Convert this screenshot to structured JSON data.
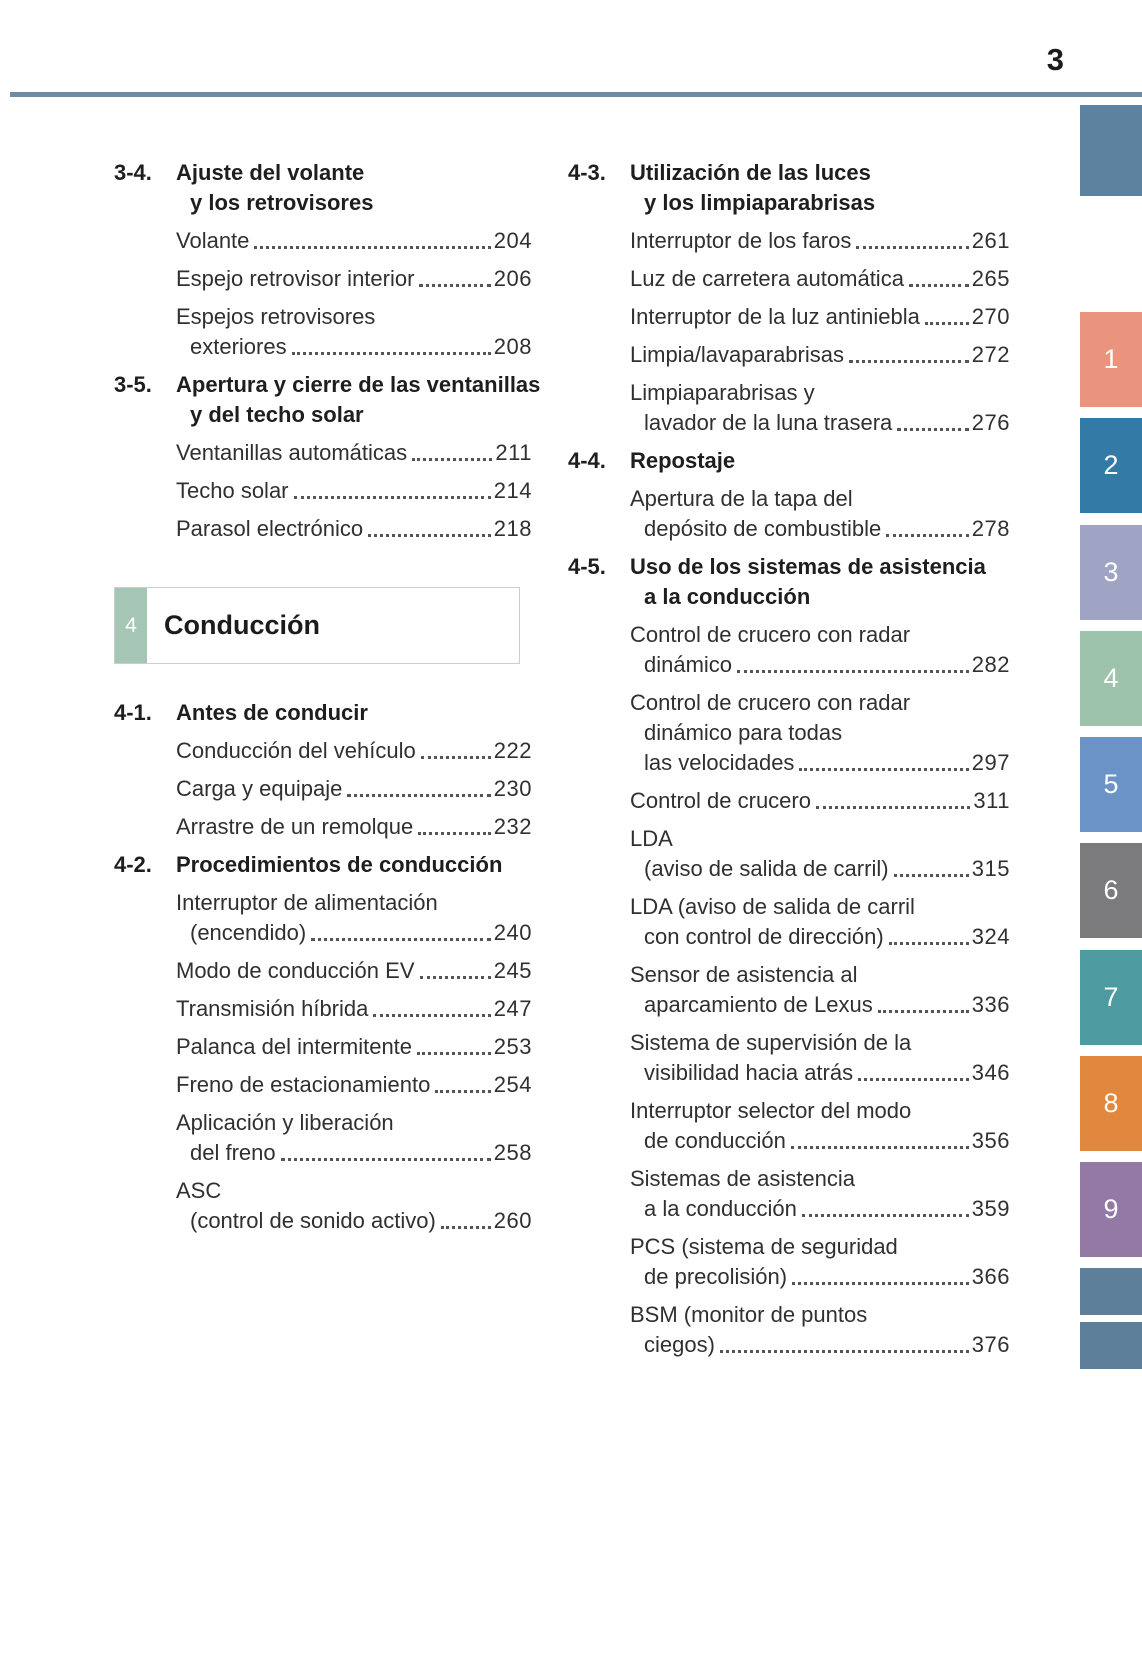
{
  "page": {
    "number": "3"
  },
  "theme": {
    "rule_color": "#6e8da4",
    "chapter_badge_color": "#a5c6b4",
    "text_color": "#303030"
  },
  "chapter_box": {
    "number": "4",
    "title": "Conducción"
  },
  "toc": {
    "left": [
      {
        "type": "section",
        "number": "3-4.",
        "title_lines": [
          "Ajuste del volante",
          "y los retrovisores"
        ],
        "items": [
          {
            "lines": [
              "Volante"
            ],
            "page": "204"
          },
          {
            "lines": [
              "Espejo retrovisor interior"
            ],
            "page": "206"
          },
          {
            "lines": [
              "Espejos retrovisores",
              "exteriores"
            ],
            "page": "208"
          }
        ]
      },
      {
        "type": "section",
        "number": "3-5.",
        "title_lines": [
          "Apertura y cierre de las ventanillas",
          "y del techo solar"
        ],
        "items": [
          {
            "lines": [
              "Ventanillas automáticas"
            ],
            "page": "211"
          },
          {
            "lines": [
              "Techo solar"
            ],
            "page": "214"
          },
          {
            "lines": [
              "Parasol electrónico"
            ],
            "page": "218"
          }
        ]
      },
      {
        "type": "chapter",
        "number": "4",
        "title": "Conducción"
      },
      {
        "type": "section",
        "number": "4-1.",
        "title_lines": [
          "Antes de conducir"
        ],
        "items": [
          {
            "lines": [
              "Conducción del vehículo"
            ],
            "page": "222"
          },
          {
            "lines": [
              "Carga y equipaje"
            ],
            "page": "230"
          },
          {
            "lines": [
              "Arrastre de un remolque"
            ],
            "page": "232"
          }
        ]
      },
      {
        "type": "section",
        "number": "4-2.",
        "title_lines": [
          "Procedimientos de conducción"
        ],
        "items": [
          {
            "lines": [
              "Interruptor de alimentación",
              "(encendido)"
            ],
            "page": "240"
          },
          {
            "lines": [
              "Modo de conducción EV"
            ],
            "page": "245"
          },
          {
            "lines": [
              "Transmisión híbrida"
            ],
            "page": "247"
          },
          {
            "lines": [
              "Palanca del intermitente"
            ],
            "page": "253"
          },
          {
            "lines": [
              "Freno de estacionamiento"
            ],
            "page": "254"
          },
          {
            "lines": [
              "Aplicación y liberación",
              "del freno"
            ],
            "page": "258"
          },
          {
            "lines": [
              "ASC",
              "(control de sonido activo)"
            ],
            "page": "260"
          }
        ]
      }
    ],
    "right": [
      {
        "type": "section",
        "number": "4-3.",
        "title_lines": [
          "Utilización de las luces",
          "y los limpiaparabrisas"
        ],
        "items": [
          {
            "lines": [
              "Interruptor de los faros"
            ],
            "page": "261"
          },
          {
            "lines": [
              "Luz de carretera automática"
            ],
            "page": "265"
          },
          {
            "lines": [
              "Interruptor de la luz antiniebla"
            ],
            "page": "270"
          },
          {
            "lines": [
              "Limpia/lavaparabrisas"
            ],
            "page": "272"
          },
          {
            "lines": [
              "Limpiaparabrisas y",
              "lavador de la luna trasera"
            ],
            "page": "276"
          }
        ]
      },
      {
        "type": "section",
        "number": "4-4.",
        "title_lines": [
          "Repostaje"
        ],
        "items": [
          {
            "lines": [
              "Apertura de la tapa del",
              "depósito de combustible"
            ],
            "page": "278"
          }
        ]
      },
      {
        "type": "section",
        "number": "4-5.",
        "title_lines": [
          "Uso de los sistemas de asistencia",
          "a la conducción"
        ],
        "items": [
          {
            "lines": [
              "Control de crucero con radar",
              "dinámico"
            ],
            "page": "282"
          },
          {
            "lines": [
              "Control de crucero con radar",
              "dinámico para todas",
              "las velocidades"
            ],
            "page": "297"
          },
          {
            "lines": [
              "Control de crucero"
            ],
            "page": "311"
          },
          {
            "lines": [
              "LDA",
              "(aviso de salida de carril)"
            ],
            "page": "315"
          },
          {
            "lines": [
              "LDA (aviso de salida de carril",
              "con control de dirección)"
            ],
            "page": "324"
          },
          {
            "lines": [
              "Sensor de asistencia al",
              "aparcamiento de Lexus"
            ],
            "page": "336"
          },
          {
            "lines": [
              "Sistema de supervisión de la",
              "visibilidad hacia atrás"
            ],
            "page": "346"
          },
          {
            "lines": [
              "Interruptor selector del modo",
              "de conducción"
            ],
            "page": "356"
          },
          {
            "lines": [
              "Sistemas de asistencia",
              "a la conducción"
            ],
            "page": "359"
          },
          {
            "lines": [
              "PCS (sistema de seguridad",
              "de precolisión)"
            ],
            "page": "366"
          },
          {
            "lines": [
              "BSM (monitor de puntos",
              "ciegos)"
            ],
            "page": "376"
          }
        ]
      }
    ]
  },
  "tabs": [
    {
      "label": "",
      "color": "#5d82a0",
      "variant": "header"
    },
    {
      "label": "1",
      "color": "#ea937e",
      "variant": "chapter"
    },
    {
      "label": "2",
      "color": "#337ba6",
      "variant": "chapter"
    },
    {
      "label": "3",
      "color": "#9fa4c5",
      "variant": "chapter"
    },
    {
      "label": "4",
      "color": "#9dc3ad",
      "variant": "chapter"
    },
    {
      "label": "5",
      "color": "#6b93c5",
      "variant": "chapter"
    },
    {
      "label": "6",
      "color": "#7b7b7e",
      "variant": "chapter"
    },
    {
      "label": "7",
      "color": "#4d9aa1",
      "variant": "chapter"
    },
    {
      "label": "8",
      "color": "#e1883e",
      "variant": "chapter"
    },
    {
      "label": "9",
      "color": "#9579a5",
      "variant": "chapter"
    },
    {
      "label": "",
      "color": "#5e7f99",
      "variant": "appendix"
    },
    {
      "label": "",
      "color": "#5e7f99",
      "variant": "appendix"
    }
  ]
}
